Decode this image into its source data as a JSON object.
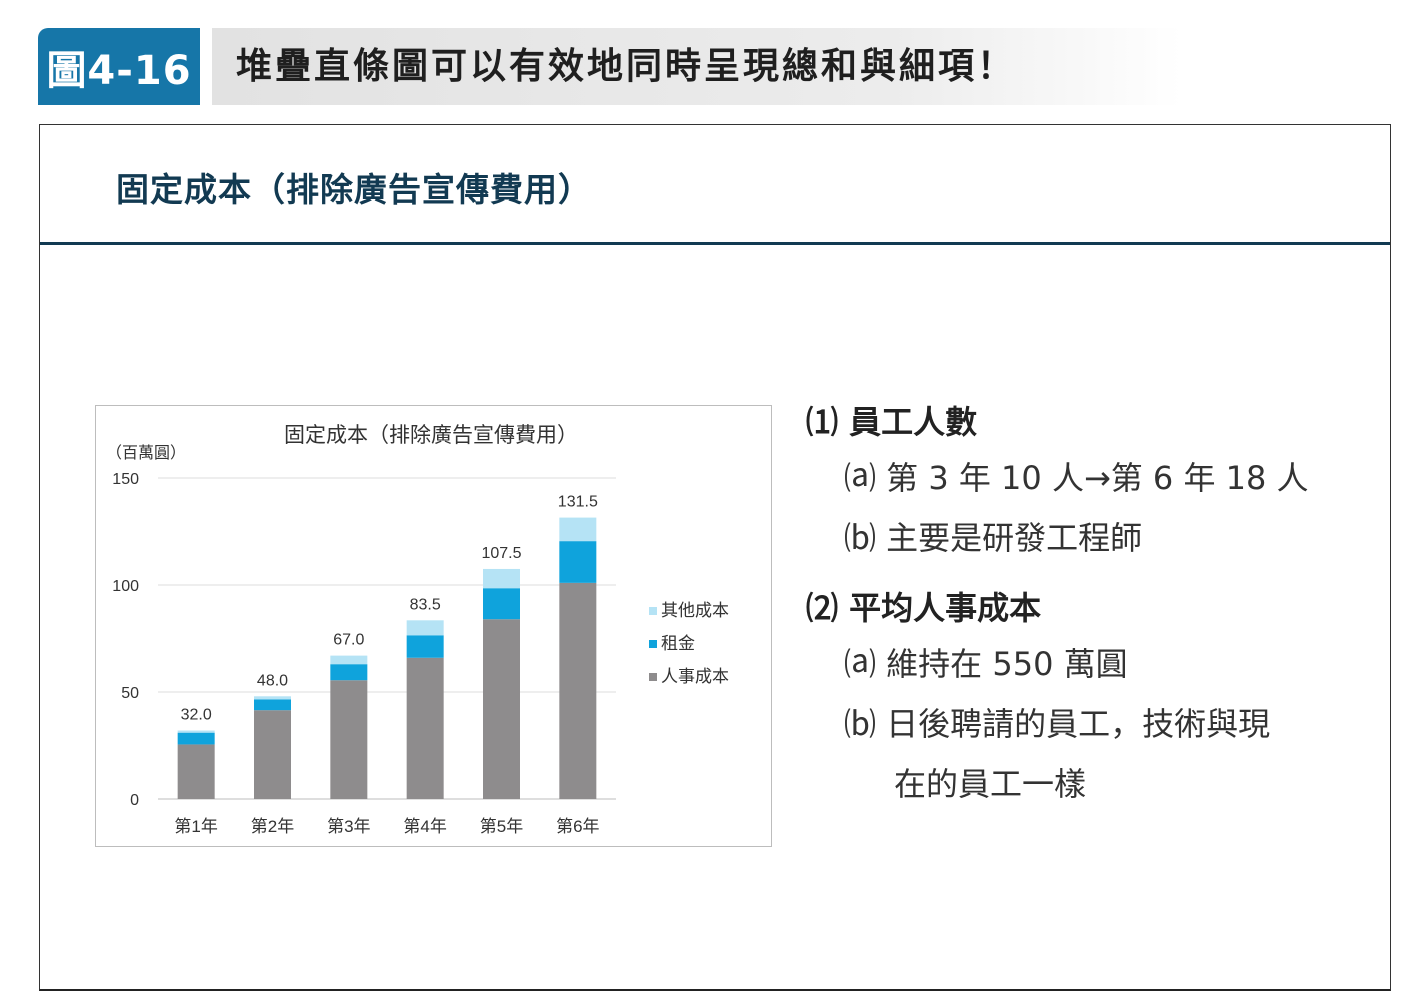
{
  "figure": {
    "tag": "圖4-16",
    "title": "堆疊直條圖可以有效地同時呈現總和與細項！"
  },
  "section_title": "固定成本（排除廣告宣傳費用）",
  "colors": {
    "accent": "#1676a8",
    "header_rule": "#123a52",
    "series_personnel": "#8e8c8d",
    "series_rent": "#0fa3dc",
    "series_other": "#b5e3f5"
  },
  "chart_data": {
    "type": "bar",
    "stacked": true,
    "title": "固定成本（排除廣告宣傳費用）",
    "ylabel": "（百萬圓）",
    "xlabel": "",
    "ylim": [
      0,
      150
    ],
    "yticks": [
      "0",
      "50",
      "100",
      "150"
    ],
    "grid": true,
    "legend_position": "right",
    "categories": [
      "第1年",
      "第2年",
      "第3年",
      "第4年",
      "第5年",
      "第6年"
    ],
    "series": [
      {
        "name": "人事成本",
        "values": [
          25.5,
          41.5,
          55.5,
          66.0,
          84.0,
          101.0
        ],
        "color": "#8e8c8d"
      },
      {
        "name": "租金",
        "values": [
          5.5,
          5.0,
          7.5,
          10.5,
          14.5,
          19.5
        ],
        "color": "#0fa3dc"
      },
      {
        "name": "其他成本",
        "values": [
          1.0,
          1.5,
          4.0,
          7.0,
          9.0,
          11.0
        ],
        "color": "#b5e3f5"
      }
    ],
    "totals": [
      "32.0",
      "48.0",
      "67.0",
      "83.5",
      "107.5",
      "131.5"
    ],
    "legend_order": [
      "其他成本",
      "租金",
      "人事成本"
    ]
  },
  "notes": {
    "point1": {
      "heading": "⑴ 員工人數",
      "items": [
        "⒜ 第 3 年 10 人→第 6 年 18 人",
        "⒝ 主要是研發工程師"
      ]
    },
    "point2": {
      "heading": "⑵ 平均人事成本",
      "items": [
        "⒜ 維持在 550 萬圓",
        "⒝ 日後聘請的員工，技術與現"
      ],
      "continuation": "在的員工一樣"
    }
  }
}
